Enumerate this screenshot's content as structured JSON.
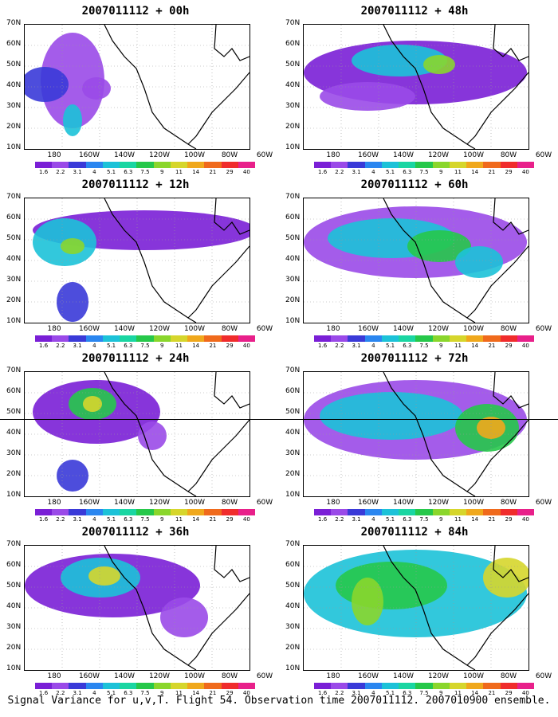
{
  "caption": "Signal Variance for u,v,T. Flight 54. Observation time 2007011112. 2007010900 ensemble.",
  "lat_labels": [
    "70N",
    "60N",
    "50N",
    "40N",
    "30N",
    "20N",
    "10N"
  ],
  "lon_labels": [
    "180",
    "160W",
    "140W",
    "120W",
    "100W",
    "80W",
    "60W"
  ],
  "colorbar": {
    "colors": [
      "#7a1fd6",
      "#9a4ae8",
      "#3a3ad8",
      "#2a86f0",
      "#1cc2d8",
      "#1ad6a2",
      "#26c84a",
      "#8ad62c",
      "#d6d62c",
      "#f0a81c",
      "#f06a1c",
      "#f02c2c",
      "#e8208a"
    ],
    "labels": [
      "1.6",
      "2.2",
      "3.1",
      "4",
      "5.1",
      "6.3",
      "7.5",
      "9",
      "11",
      "14",
      "21",
      "29",
      "40"
    ]
  },
  "panels": [
    {
      "title": "2007011112 + 00h"
    },
    {
      "title": "2007011112 + 48h"
    },
    {
      "title": "2007011112 + 12h"
    },
    {
      "title": "2007011112 + 60h"
    },
    {
      "title": "2007011112 + 24h"
    },
    {
      "title": "2007011112 + 72h"
    },
    {
      "title": "2007011112 + 36h"
    },
    {
      "title": "2007011112 + 84h"
    }
  ]
}
